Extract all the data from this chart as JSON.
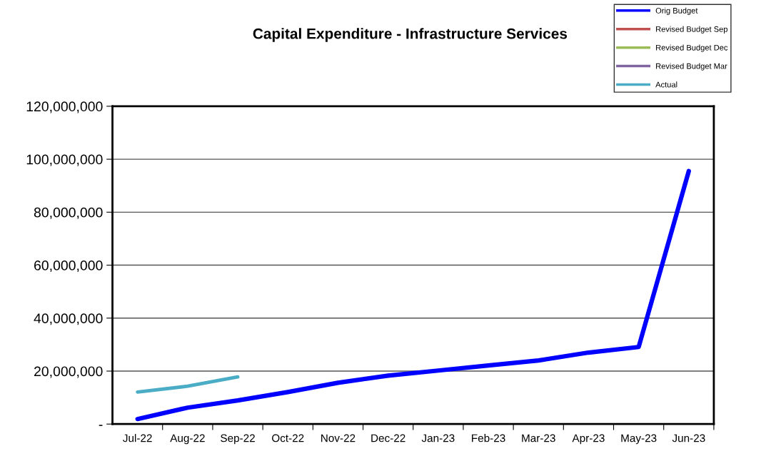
{
  "chart_data": {
    "type": "line",
    "title": "Capital Expenditure - Infrastructure Services",
    "categories": [
      "Jul-22",
      "Aug-22",
      "Sep-22",
      "Oct-22",
      "Nov-22",
      "Dec-22",
      "Jan-23",
      "Feb-23",
      "Mar-23",
      "Apr-23",
      "May-23",
      "Jun-23"
    ],
    "series": [
      {
        "name": "Orig Budget",
        "color": "#0000ff",
        "values": [
          1900000,
          6200000,
          8900000,
          12100000,
          15600000,
          18300000,
          20200000,
          22100000,
          24000000,
          27000000,
          29100000,
          95500000
        ]
      },
      {
        "name": "Revised Budget Sep",
        "color": "#c0504d",
        "values": [
          null,
          null,
          null,
          null,
          null,
          null,
          null,
          null,
          null,
          null,
          null,
          null
        ]
      },
      {
        "name": "Revised Budget Dec",
        "color": "#9bbb59",
        "values": [
          null,
          null,
          null,
          null,
          null,
          null,
          null,
          null,
          null,
          null,
          null,
          null
        ]
      },
      {
        "name": "Revised Budget Mar",
        "color": "#8064a2",
        "values": [
          null,
          null,
          null,
          null,
          null,
          null,
          null,
          null,
          null,
          null,
          null,
          null
        ]
      },
      {
        "name": "Actual",
        "color": "#4bacc6",
        "values": [
          12100000,
          14300000,
          17800000,
          null,
          null,
          null,
          null,
          null,
          null,
          null,
          null,
          null
        ]
      }
    ],
    "ylim": [
      0,
      120000000
    ],
    "yticks": [
      {
        "value": 0,
        "label": "-"
      },
      {
        "value": 20000000,
        "label": "20,000,000"
      },
      {
        "value": 40000000,
        "label": "40,000,000"
      },
      {
        "value": 60000000,
        "label": "60,000,000"
      },
      {
        "value": 80000000,
        "label": "80,000,000"
      },
      {
        "value": 100000000,
        "label": "100,000,000"
      },
      {
        "value": 120000000,
        "label": "120,000,000"
      }
    ],
    "grid": "y",
    "legend": "top right",
    "marker": "none",
    "line_style": "solid"
  }
}
